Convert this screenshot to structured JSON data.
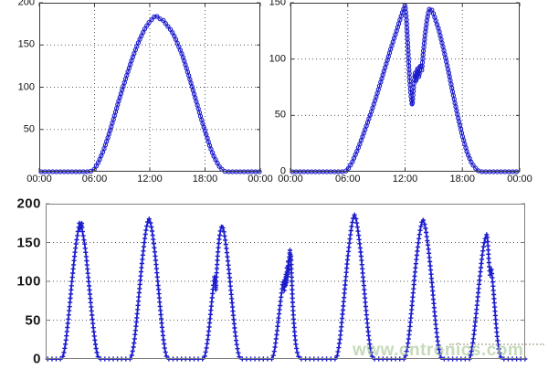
{
  "page": {
    "background": "#ffffff"
  },
  "watermark": {
    "text": "www.cntronics.com",
    "color": "#a9c794"
  },
  "chart_data": [
    {
      "id": "top-left-daily-irradiance",
      "type": "line",
      "title": "",
      "xlabel": "",
      "ylabel": "",
      "marker": "circle",
      "marker_size": 2.1,
      "marker_spacing": 4.2,
      "line_width": 1.2,
      "line_color": "#1c1ccd",
      "axis_color": "#3a3a3a",
      "grid_color": "#5a5a5a",
      "xlim": [
        0,
        24
      ],
      "ylim": [
        0,
        200
      ],
      "xticks": [
        0,
        6,
        12,
        18,
        24
      ],
      "xticklabels": [
        "00:00",
        "06:00",
        "12:00",
        "18:00",
        "00:00"
      ],
      "yticks": [
        50,
        100,
        150,
        200
      ],
      "yticklabels": [
        "50",
        "100",
        "150",
        "200"
      ],
      "grid_h": [
        50,
        100,
        150
      ],
      "grid_v": [
        6,
        12,
        18
      ],
      "points": [
        [
          0,
          0
        ],
        [
          5.5,
          0
        ],
        [
          6,
          3
        ],
        [
          6.5,
          13
        ],
        [
          7,
          26
        ],
        [
          7.5,
          42
        ],
        [
          8,
          60
        ],
        [
          8.5,
          79
        ],
        [
          9,
          97
        ],
        [
          9.5,
          114
        ],
        [
          10,
          131
        ],
        [
          10.5,
          146
        ],
        [
          11,
          159
        ],
        [
          11.5,
          170
        ],
        [
          12,
          178
        ],
        [
          12.3,
          181
        ],
        [
          12.6,
          185
        ],
        [
          12.9,
          183
        ],
        [
          13.2,
          180
        ],
        [
          13.5,
          179
        ],
        [
          13.8,
          174
        ],
        [
          14.2,
          169
        ],
        [
          14.6,
          162
        ],
        [
          15,
          152
        ],
        [
          15.5,
          139
        ],
        [
          16,
          122
        ],
        [
          16.5,
          104
        ],
        [
          17,
          85
        ],
        [
          17.5,
          66
        ],
        [
          18,
          48
        ],
        [
          18.5,
          31
        ],
        [
          19,
          17
        ],
        [
          19.5,
          7
        ],
        [
          20,
          1
        ],
        [
          20.3,
          0
        ],
        [
          24,
          0
        ]
      ]
    },
    {
      "id": "top-right-daily-irradiance-cloud-dip",
      "type": "line",
      "title": "",
      "xlabel": "",
      "ylabel": "",
      "marker": "circle",
      "marker_size": 2.1,
      "marker_spacing": 4.2,
      "line_width": 1.2,
      "line_color": "#1c1ccd",
      "axis_color": "#3a3a3a",
      "grid_color": "#5a5a5a",
      "xlim": [
        0,
        24
      ],
      "ylim": [
        0,
        150
      ],
      "xticks": [
        0,
        6,
        12,
        18,
        24
      ],
      "xticklabels": [
        "00:00",
        "06:00",
        "12:00",
        "18:00",
        "00:00"
      ],
      "yticks": [
        0,
        50,
        100,
        150
      ],
      "yticklabels": [
        "0",
        "50",
        "100",
        "150"
      ],
      "grid_h": [
        50,
        100
      ],
      "grid_v": [
        6,
        12,
        18
      ],
      "points": [
        [
          0,
          0
        ],
        [
          5.7,
          0
        ],
        [
          6,
          2
        ],
        [
          6.5,
          9
        ],
        [
          7,
          19
        ],
        [
          7.5,
          30
        ],
        [
          8,
          42
        ],
        [
          8.5,
          54
        ],
        [
          9,
          67
        ],
        [
          9.5,
          81
        ],
        [
          10,
          95
        ],
        [
          10.5,
          109
        ],
        [
          11,
          122
        ],
        [
          11.4,
          133
        ],
        [
          11.7,
          141
        ],
        [
          12,
          148
        ],
        [
          12.15,
          135
        ],
        [
          12.3,
          110
        ],
        [
          12.45,
          85
        ],
        [
          12.6,
          68
        ],
        [
          12.75,
          59
        ],
        [
          12.9,
          75
        ],
        [
          13.05,
          88
        ],
        [
          13.15,
          80
        ],
        [
          13.3,
          92
        ],
        [
          13.45,
          84
        ],
        [
          13.6,
          95
        ],
        [
          13.75,
          90
        ],
        [
          13.9,
          105
        ],
        [
          14.1,
          122
        ],
        [
          14.3,
          135
        ],
        [
          14.5,
          144
        ],
        [
          14.7,
          145
        ],
        [
          14.9,
          142
        ],
        [
          15.1,
          137
        ],
        [
          15.5,
          127
        ],
        [
          16,
          110
        ],
        [
          16.5,
          91
        ],
        [
          17,
          70
        ],
        [
          17.5,
          50
        ],
        [
          18,
          32
        ],
        [
          18.5,
          17
        ],
        [
          19,
          7
        ],
        [
          19.5,
          2
        ],
        [
          19.8,
          0
        ],
        [
          24,
          0
        ]
      ]
    },
    {
      "id": "bottom-weekly-irradiance",
      "type": "line",
      "title": "",
      "xlabel": "",
      "ylabel": "",
      "marker": "plus",
      "marker_size": 2.6,
      "marker_spacing": 4.6,
      "line_width": 1.7,
      "line_color": "#1c1ccd",
      "axis_color": "#808080",
      "grid_color": "#5a5a5a",
      "xlim": [
        0,
        168
      ],
      "ylim": [
        0,
        200
      ],
      "xticks": [],
      "xticklabels": [],
      "yticks": [
        0,
        50,
        100,
        150,
        200
      ],
      "yticklabels": [
        "0",
        "50",
        "100",
        "150",
        "200"
      ],
      "grid_h": [
        50,
        100,
        150
      ],
      "grid_v": [],
      "points": [
        [
          0,
          0
        ],
        [
          5.7,
          0
        ],
        [
          6.2,
          5
        ],
        [
          6.7,
          14
        ],
        [
          7.2,
          26
        ],
        [
          7.7,
          43
        ],
        [
          8.2,
          61
        ],
        [
          8.7,
          80
        ],
        [
          9.2,
          100
        ],
        [
          9.7,
          118
        ],
        [
          10.2,
          135
        ],
        [
          10.7,
          149
        ],
        [
          11.2,
          161
        ],
        [
          11.6,
          170
        ],
        [
          11.8,
          175
        ],
        [
          12,
          166
        ],
        [
          12.2,
          174
        ],
        [
          12.4,
          168
        ],
        [
          12.6,
          176
        ],
        [
          12.8,
          167
        ],
        [
          13,
          162
        ],
        [
          13.2,
          158
        ],
        [
          13.7,
          147
        ],
        [
          14.2,
          132
        ],
        [
          14.7,
          114
        ],
        [
          15.2,
          95
        ],
        [
          15.7,
          76
        ],
        [
          16.2,
          57
        ],
        [
          16.7,
          40
        ],
        [
          17.2,
          25
        ],
        [
          17.7,
          13
        ],
        [
          18.2,
          4
        ],
        [
          18.7,
          0
        ],
        [
          29.7,
          0
        ],
        [
          30.2,
          5
        ],
        [
          30.7,
          14
        ],
        [
          31.2,
          27
        ],
        [
          31.7,
          44
        ],
        [
          32.2,
          63
        ],
        [
          32.7,
          83
        ],
        [
          33.2,
          103
        ],
        [
          33.7,
          122
        ],
        [
          34.2,
          139
        ],
        [
          34.7,
          154
        ],
        [
          35.2,
          167
        ],
        [
          35.7,
          176
        ],
        [
          36.2,
          181
        ],
        [
          36.7,
          176
        ],
        [
          37.2,
          167
        ],
        [
          37.7,
          154
        ],
        [
          38.2,
          139
        ],
        [
          38.7,
          122
        ],
        [
          39.2,
          103
        ],
        [
          39.7,
          83
        ],
        [
          40.2,
          63
        ],
        [
          40.7,
          44
        ],
        [
          41.2,
          27
        ],
        [
          41.7,
          14
        ],
        [
          42.2,
          5
        ],
        [
          42.7,
          0
        ],
        [
          55.3,
          0
        ],
        [
          55.8,
          4
        ],
        [
          56.3,
          13
        ],
        [
          56.8,
          25
        ],
        [
          57.3,
          41
        ],
        [
          57.8,
          59
        ],
        [
          58.3,
          78
        ],
        [
          58.8,
          97
        ],
        [
          59.2,
          107
        ],
        [
          59.4,
          98
        ],
        [
          59.6,
          88
        ],
        [
          59.8,
          104
        ],
        [
          60,
          118
        ],
        [
          60.3,
          135
        ],
        [
          60.8,
          155
        ],
        [
          61.3,
          167
        ],
        [
          61.8,
          172
        ],
        [
          62.3,
          167
        ],
        [
          62.8,
          156
        ],
        [
          63.3,
          143
        ],
        [
          63.8,
          128
        ],
        [
          64.3,
          111
        ],
        [
          64.8,
          92
        ],
        [
          65.3,
          73
        ],
        [
          65.8,
          54
        ],
        [
          66.3,
          37
        ],
        [
          66.8,
          22
        ],
        [
          67.3,
          11
        ],
        [
          67.8,
          3
        ],
        [
          68.3,
          0
        ],
        [
          79.4,
          0
        ],
        [
          79.9,
          6
        ],
        [
          80.4,
          16
        ],
        [
          80.9,
          30
        ],
        [
          81.4,
          46
        ],
        [
          81.9,
          62
        ],
        [
          82.4,
          78
        ],
        [
          82.9,
          92
        ],
        [
          83.2,
          100
        ],
        [
          83.4,
          93
        ],
        [
          83.6,
          88
        ],
        [
          83.8,
          103
        ],
        [
          84,
          93
        ],
        [
          84.2,
          110
        ],
        [
          84.4,
          97
        ],
        [
          84.6,
          120
        ],
        [
          84.8,
          105
        ],
        [
          85,
          128
        ],
        [
          85.2,
          112
        ],
        [
          85.4,
          133
        ],
        [
          85.6,
          141
        ],
        [
          85.75,
          128
        ],
        [
          85.9,
          135
        ],
        [
          86.1,
          115
        ],
        [
          86.3,
          95
        ],
        [
          86.5,
          75
        ],
        [
          86.8,
          55
        ],
        [
          87.2,
          35
        ],
        [
          87.6,
          20
        ],
        [
          88.1,
          9
        ],
        [
          88.6,
          3
        ],
        [
          89.2,
          0
        ],
        [
          101.7,
          0
        ],
        [
          102.2,
          5
        ],
        [
          102.7,
          15
        ],
        [
          103.2,
          28
        ],
        [
          103.7,
          46
        ],
        [
          104.2,
          65
        ],
        [
          104.7,
          86
        ],
        [
          105.2,
          106
        ],
        [
          105.7,
          126
        ],
        [
          106.2,
          143
        ],
        [
          106.7,
          158
        ],
        [
          107.2,
          171
        ],
        [
          107.7,
          181
        ],
        [
          108.2,
          186
        ],
        [
          108.7,
          181
        ],
        [
          109.2,
          171
        ],
        [
          109.7,
          158
        ],
        [
          110.2,
          143
        ],
        [
          110.7,
          126
        ],
        [
          111.2,
          106
        ],
        [
          111.7,
          86
        ],
        [
          112.2,
          65
        ],
        [
          112.7,
          46
        ],
        [
          113.2,
          28
        ],
        [
          113.7,
          15
        ],
        [
          114.2,
          5
        ],
        [
          114.7,
          0
        ],
        [
          125.7,
          0
        ],
        [
          126.2,
          5
        ],
        [
          126.7,
          14
        ],
        [
          127.2,
          27
        ],
        [
          127.7,
          44
        ],
        [
          128.2,
          63
        ],
        [
          128.7,
          83
        ],
        [
          129.2,
          103
        ],
        [
          129.7,
          122
        ],
        [
          130.2,
          139
        ],
        [
          130.7,
          153
        ],
        [
          131.2,
          166
        ],
        [
          131.7,
          175
        ],
        [
          132.2,
          180
        ],
        [
          132.7,
          175
        ],
        [
          133.2,
          166
        ],
        [
          133.7,
          153
        ],
        [
          134.2,
          139
        ],
        [
          134.7,
          122
        ],
        [
          135.2,
          103
        ],
        [
          135.7,
          83
        ],
        [
          136.2,
          63
        ],
        [
          136.7,
          44
        ],
        [
          137.2,
          27
        ],
        [
          137.7,
          14
        ],
        [
          138.2,
          5
        ],
        [
          138.7,
          0
        ],
        [
          148.6,
          0
        ],
        [
          149.1,
          8
        ],
        [
          149.6,
          19
        ],
        [
          150.1,
          33
        ],
        [
          150.6,
          50
        ],
        [
          151.1,
          68
        ],
        [
          151.6,
          87
        ],
        [
          152.1,
          105
        ],
        [
          152.6,
          122
        ],
        [
          153.1,
          137
        ],
        [
          153.6,
          149
        ],
        [
          154.1,
          157
        ],
        [
          154.6,
          161
        ],
        [
          154.9,
          150
        ],
        [
          155.2,
          132
        ],
        [
          155.5,
          115
        ],
        [
          155.7,
          108
        ],
        [
          155.9,
          114
        ],
        [
          156.1,
          117
        ],
        [
          156.3,
          111
        ],
        [
          156.6,
          100
        ],
        [
          157,
          82
        ],
        [
          157.4,
          63
        ],
        [
          157.8,
          45
        ],
        [
          158.2,
          29
        ],
        [
          158.6,
          16
        ],
        [
          159.1,
          6
        ],
        [
          159.6,
          1
        ],
        [
          160.1,
          0
        ],
        [
          168,
          0
        ]
      ]
    }
  ]
}
